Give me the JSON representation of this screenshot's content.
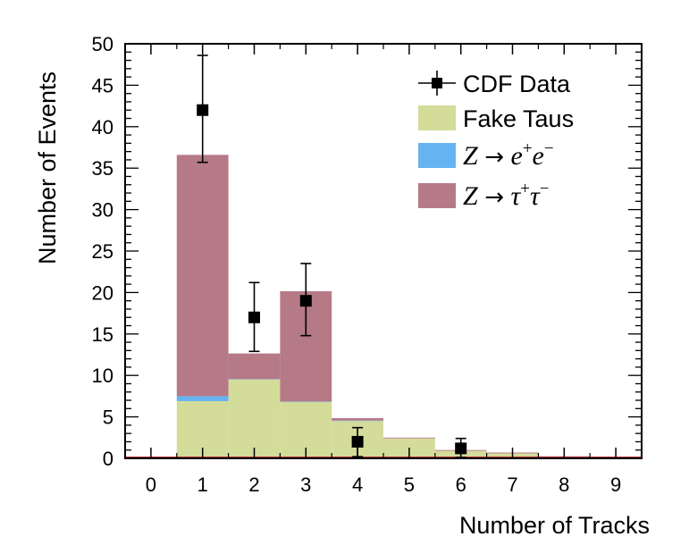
{
  "chart_data": {
    "type": "bar",
    "xlabel": "Number of Tracks",
    "ylabel": "Number of Events",
    "xlim": [
      -0.5,
      9.5
    ],
    "ylim": [
      0,
      50
    ],
    "x_ticks": [
      "0",
      "1",
      "2",
      "3",
      "4",
      "5",
      "6",
      "7",
      "8",
      "9"
    ],
    "y_ticks": [
      "0",
      "5",
      "10",
      "15",
      "20",
      "25",
      "30",
      "35",
      "40",
      "45",
      "50"
    ],
    "categories": [
      0,
      1,
      2,
      3,
      4,
      5,
      6,
      7,
      8,
      9
    ],
    "stacked": true,
    "series": [
      {
        "name": "Fake Taus",
        "color": "#d4dc9a",
        "values": [
          0,
          6.9,
          9.5,
          6.8,
          4.5,
          2.4,
          0.9,
          0.6,
          0.2,
          0
        ]
      },
      {
        "name": "Z → e+e−",
        "color": "#66b3f2",
        "values": [
          0,
          0.6,
          0.05,
          0.05,
          0.05,
          0,
          0,
          0,
          0,
          0
        ]
      },
      {
        "name": "Z → τ+τ−",
        "color": "#b57a86",
        "values": [
          0,
          29.1,
          3.1,
          13.3,
          0.3,
          0.1,
          0.1,
          0.1,
          0.05,
          0
        ]
      }
    ],
    "points": {
      "name": "CDF Data",
      "x": [
        1,
        2,
        3,
        4,
        6
      ],
      "y": [
        42,
        17,
        19,
        2,
        1.2
      ],
      "yerr_low": [
        6.3,
        4.1,
        4.2,
        1.8,
        1.1
      ],
      "yerr_high": [
        6.6,
        4.2,
        4.5,
        1.7,
        1.2
      ]
    },
    "legend": {
      "placement": "top-right",
      "entries": [
        {
          "type": "marker",
          "text": "CDF Data"
        },
        {
          "type": "fill",
          "color": "#d4dc9a",
          "text": "Fake Taus"
        },
        {
          "type": "fill-math",
          "color": "#66b3f2",
          "lhs": "Z",
          "arrow": "→",
          "base": "e",
          "sup1": "+",
          "base2": "e",
          "sup2": "−"
        },
        {
          "type": "fill-math",
          "color": "#b57a86",
          "lhs": "Z",
          "arrow": "→",
          "base": "τ",
          "sup1": "+",
          "base2": "τ",
          "sup2": "−"
        }
      ]
    },
    "grid": false
  }
}
